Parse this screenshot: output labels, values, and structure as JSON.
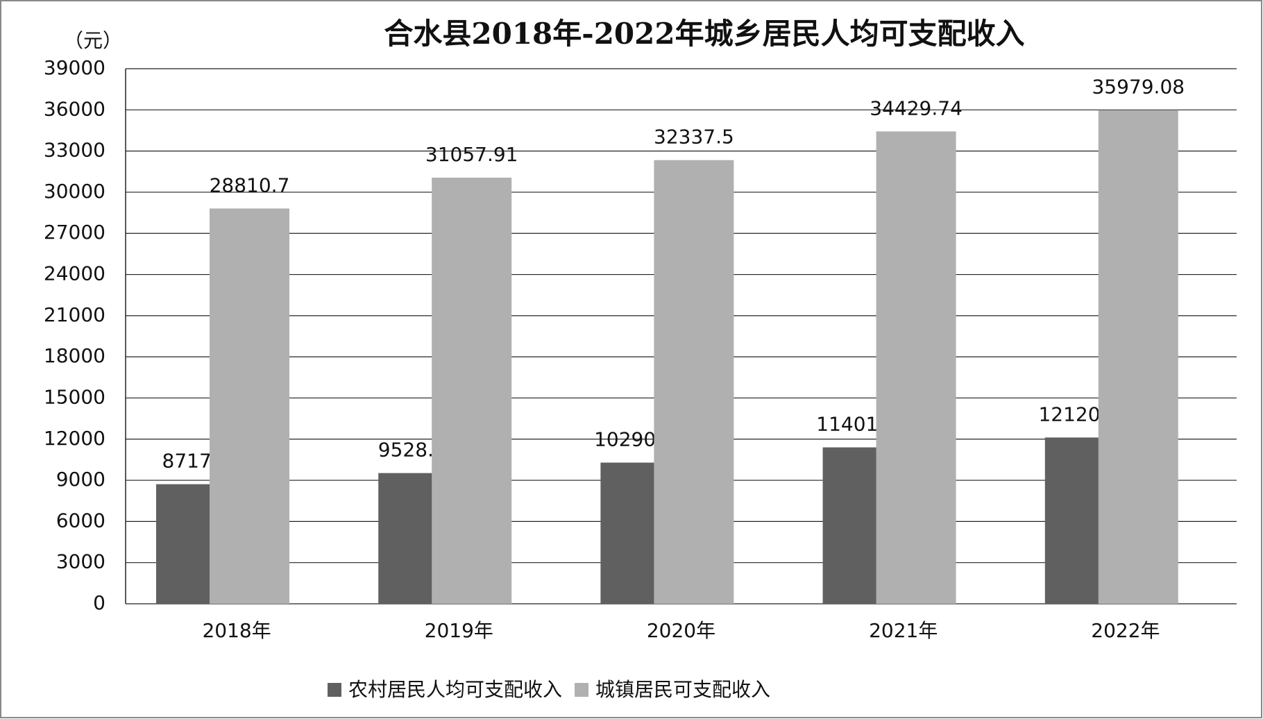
{
  "chart_data": {
    "type": "bar",
    "title": "合水县2018年-2022年城乡居民人均可支配收入",
    "y_label": "（元）",
    "categories": [
      "2018年",
      "2019年",
      "2020年",
      "2021年",
      "2022年"
    ],
    "series": [
      {
        "name": "农村居民人均可支配收入",
        "color": "#606060",
        "values": [
          8717.5,
          9528.22,
          10290.48,
          11401.86,
          12120.18
        ]
      },
      {
        "name": "城镇居民可支配收入",
        "color": "#b0b0b0",
        "values": [
          28810.7,
          31057.91,
          32337.5,
          34429.74,
          35979.08
        ]
      }
    ],
    "ylim": [
      0,
      39000
    ],
    "yticks": [
      0,
      3000,
      6000,
      9000,
      12000,
      15000,
      18000,
      21000,
      24000,
      27000,
      30000,
      33000,
      36000,
      39000
    ],
    "grid": true,
    "legend": "bottom"
  }
}
